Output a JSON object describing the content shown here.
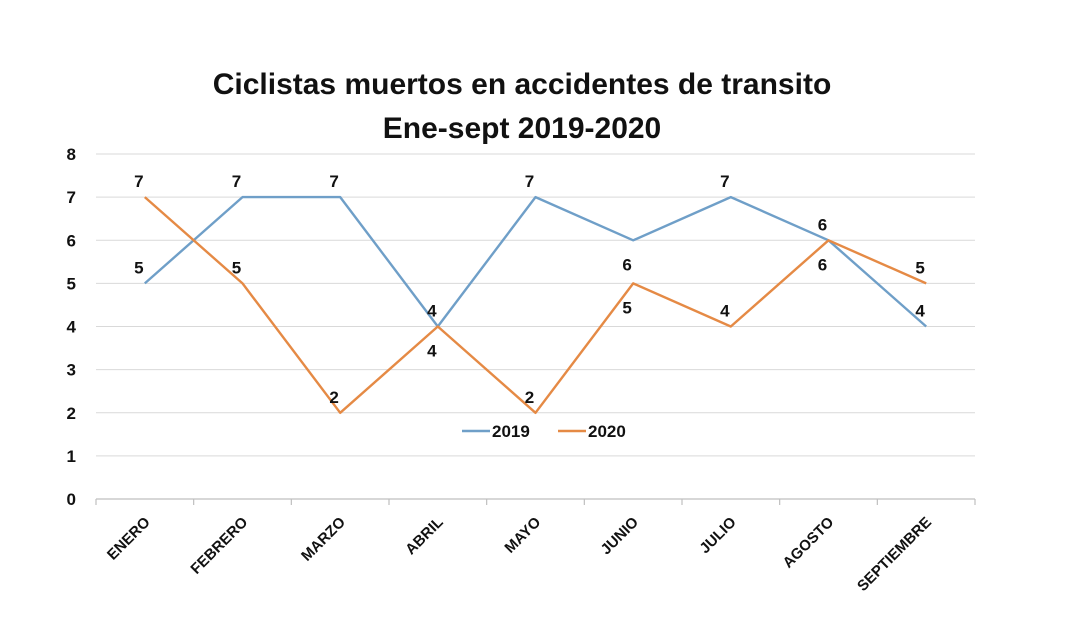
{
  "chart_data": {
    "type": "line",
    "title": "Ciclistas muertos en accidentes de transito",
    "subtitle": "Ene-sept 2019-2020",
    "categories": [
      "ENERO",
      "FEBRERO",
      "MARZO",
      "ABRIL",
      "MAYO",
      "JUNIO",
      "JULIO",
      "AGOSTO",
      "SEPTIEMBRE"
    ],
    "series": [
      {
        "name": "2019",
        "color": "#6f9fc8",
        "values": [
          5,
          7,
          7,
          4,
          7,
          6,
          7,
          6,
          4
        ],
        "label_pos": [
          "above",
          "above",
          "above",
          "below",
          "above",
          "below",
          "above",
          "below",
          "above"
        ]
      },
      {
        "name": "2020",
        "color": "#e58a45",
        "values": [
          7,
          5,
          2,
          4,
          2,
          5,
          4,
          6,
          5
        ],
        "label_pos": [
          "above",
          "above",
          "above",
          "above",
          "above",
          "below",
          "above",
          "above",
          "above"
        ]
      }
    ],
    "ylim": [
      0,
      8
    ],
    "yticks": [
      0,
      1,
      2,
      3,
      4,
      5,
      6,
      7,
      8
    ],
    "grid": true,
    "legend": "inside-bottom-center",
    "xlabel": "",
    "ylabel": ""
  }
}
